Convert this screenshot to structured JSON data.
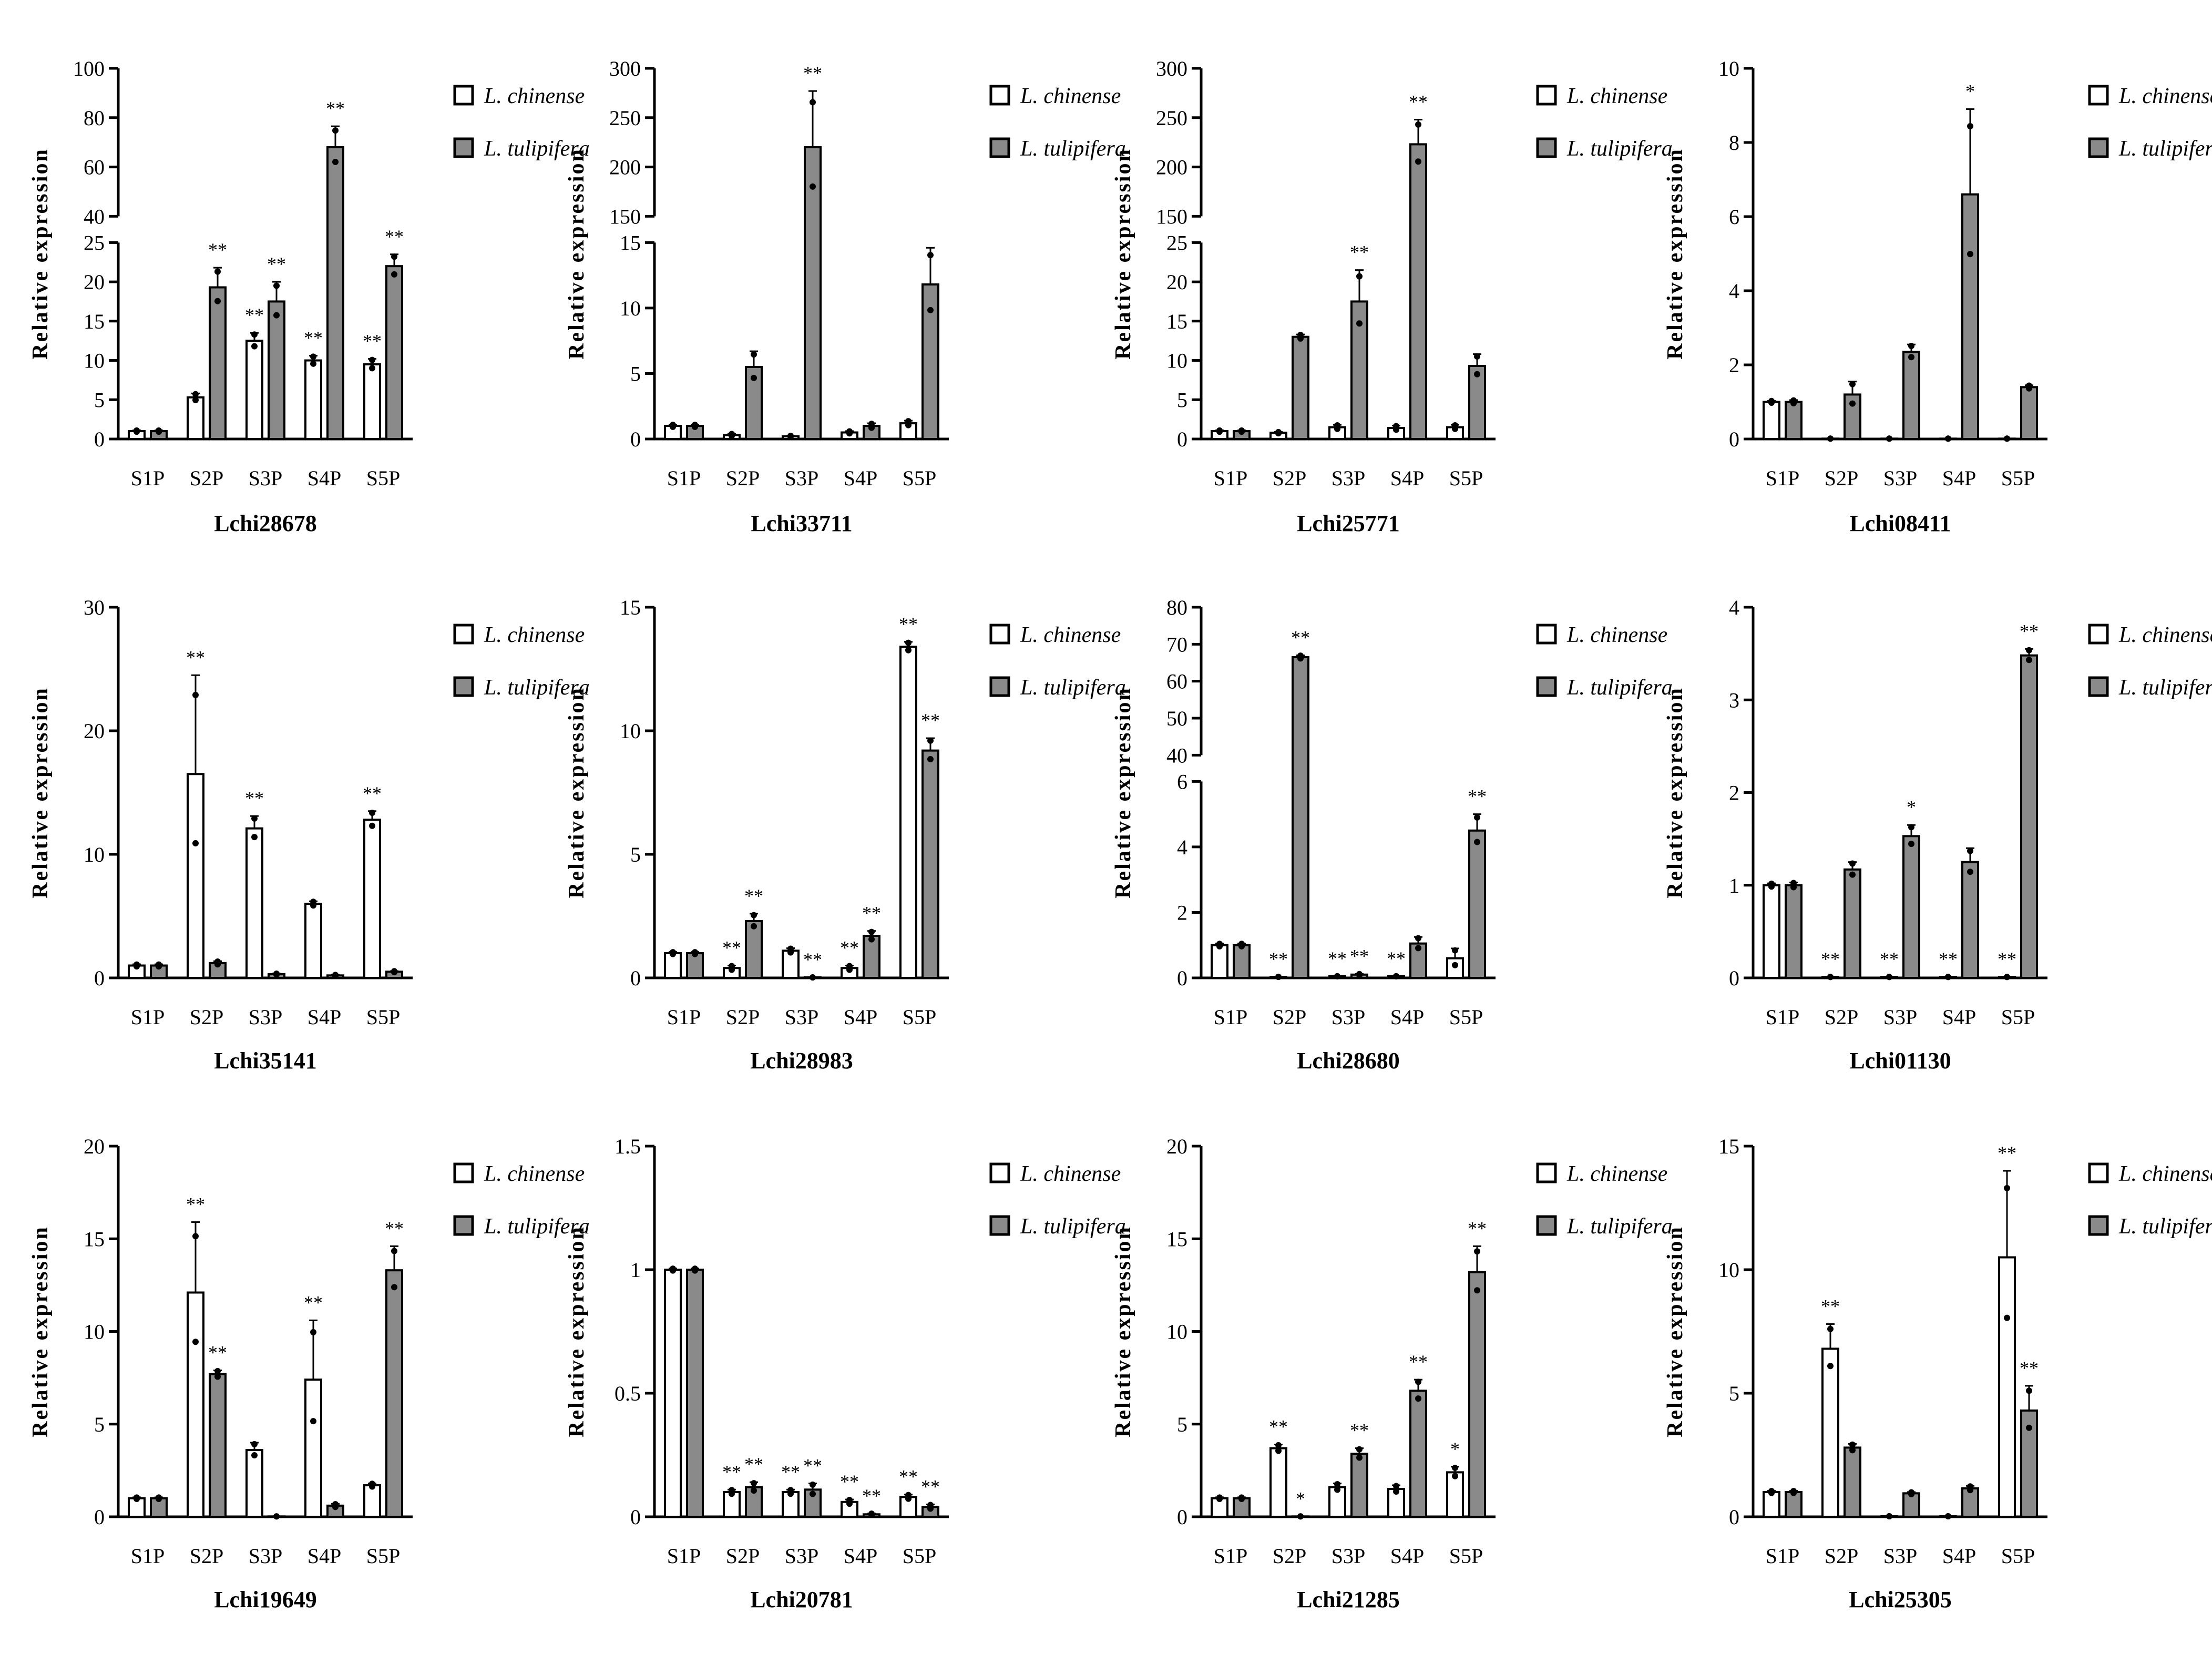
{
  "shared": {
    "ylabel": "Relative expression",
    "categories": [
      "S1P",
      "S2P",
      "S3P",
      "S4P",
      "S5P"
    ],
    "legend": [
      "L. chinense",
      "L. tulipifera"
    ],
    "colors": {
      "chinense": "#ffffff",
      "tulipifera": "#8a8a8a",
      "axis": "#000000"
    }
  },
  "chart_data": [
    {
      "type": "bar",
      "title": "Lchi28678",
      "ylabel": "Relative expression",
      "categories": [
        "S1P",
        "S2P",
        "S3P",
        "S4P",
        "S5P"
      ],
      "ylim": [
        0,
        100
      ],
      "axis_break": [
        25,
        40
      ],
      "yticks_lower": [
        0,
        5,
        10,
        15,
        20,
        25
      ],
      "yticks_upper": [
        40,
        60,
        80,
        100
      ],
      "series": [
        {
          "name": "L. chinense",
          "values": [
            1,
            5.3,
            12.5,
            10,
            9.5
          ],
          "errors": [
            0.1,
            0.5,
            1.0,
            0.6,
            0.7
          ],
          "sig": [
            "",
            "",
            "**",
            "**",
            "**"
          ]
        },
        {
          "name": "L. tulipifera",
          "values": [
            1,
            19.3,
            17.5,
            68,
            22
          ],
          "errors": [
            0.1,
            2.5,
            2.5,
            8.5,
            1.5
          ],
          "sig": [
            "",
            "**",
            "**",
            "**",
            "**"
          ]
        }
      ]
    },
    {
      "type": "bar",
      "title": "Lchi33711",
      "ylabel": "Relative expression",
      "categories": [
        "S1P",
        "S2P",
        "S3P",
        "S4P",
        "S5P"
      ],
      "ylim": [
        0,
        300
      ],
      "axis_break": [
        15,
        150
      ],
      "yticks_lower": [
        0,
        5,
        10,
        15
      ],
      "yticks_upper": [
        150,
        200,
        250,
        300
      ],
      "series": [
        {
          "name": "L. chinense",
          "values": [
            1,
            0.3,
            0.2,
            0.5,
            1.2
          ],
          "errors": [
            0.1,
            0.1,
            0.05,
            0.1,
            0.2
          ],
          "sig": [
            "",
            "",
            "",
            "",
            ""
          ]
        },
        {
          "name": "L. tulipifera",
          "values": [
            1,
            5.5,
            220,
            1,
            11.8
          ],
          "errors": [
            0.1,
            1.2,
            57,
            0.2,
            2.8
          ],
          "sig": [
            "",
            "",
            "**",
            "",
            ""
          ]
        }
      ]
    },
    {
      "type": "bar",
      "title": "Lchi25771",
      "ylabel": "Relative expression",
      "categories": [
        "S1P",
        "S2P",
        "S3P",
        "S4P",
        "S5P"
      ],
      "ylim": [
        0,
        300
      ],
      "axis_break": [
        25,
        150
      ],
      "yticks_lower": [
        0,
        5,
        10,
        15,
        20,
        25
      ],
      "yticks_upper": [
        150,
        200,
        250,
        300
      ],
      "series": [
        {
          "name": "L. chinense",
          "values": [
            1,
            0.8,
            1.5,
            1.4,
            1.5
          ],
          "errors": [
            0.1,
            0.1,
            0.3,
            0.3,
            0.3
          ],
          "sig": [
            "",
            "",
            "",
            "",
            ""
          ]
        },
        {
          "name": "L. tulipifera",
          "values": [
            1,
            13,
            17.5,
            223,
            9.3
          ],
          "errors": [
            0.1,
            0.3,
            4,
            25,
            1.5
          ],
          "sig": [
            "",
            "",
            "**",
            "**",
            ""
          ]
        }
      ]
    },
    {
      "type": "bar",
      "title": "Lchi08411",
      "ylabel": "Relative expression",
      "categories": [
        "S1P",
        "S2P",
        "S3P",
        "S4P",
        "S5P"
      ],
      "ylim": [
        0,
        10
      ],
      "yticks": [
        0,
        2,
        4,
        6,
        8,
        10
      ],
      "series": [
        {
          "name": "L. chinense",
          "values": [
            1,
            0.01,
            0.01,
            0.01,
            0.01
          ],
          "errors": [
            0.03,
            0,
            0,
            0,
            0
          ],
          "sig": [
            "",
            "",
            "",
            "",
            ""
          ]
        },
        {
          "name": "L. tulipifera",
          "values": [
            1,
            1.2,
            2.35,
            6.6,
            1.4
          ],
          "errors": [
            0.05,
            0.35,
            0.2,
            2.3,
            0.05
          ],
          "sig": [
            "",
            "",
            "",
            "*",
            ""
          ]
        }
      ]
    },
    {
      "type": "bar",
      "title": "Lchi35141",
      "ylabel": "Relative expression",
      "categories": [
        "S1P",
        "S2P",
        "S3P",
        "S4P",
        "S5P"
      ],
      "ylim": [
        0,
        30
      ],
      "yticks": [
        0,
        10,
        20,
        30
      ],
      "series": [
        {
          "name": "L. chinense",
          "values": [
            1,
            16.5,
            12.1,
            6,
            12.8
          ],
          "errors": [
            0.1,
            8,
            1,
            0.2,
            0.7
          ],
          "sig": [
            "",
            "**",
            "**",
            "",
            "**"
          ]
        },
        {
          "name": "L. tulipifera",
          "values": [
            1,
            1.2,
            0.3,
            0.2,
            0.5
          ],
          "errors": [
            0.1,
            0.15,
            0.05,
            0.05,
            0.05
          ],
          "sig": [
            "",
            "",
            "",
            "",
            ""
          ]
        }
      ]
    },
    {
      "type": "bar",
      "title": "Lchi28983",
      "ylabel": "Relative expression",
      "categories": [
        "S1P",
        "S2P",
        "S3P",
        "S4P",
        "S5P"
      ],
      "ylim": [
        0,
        15
      ],
      "yticks": [
        0,
        5,
        10,
        15
      ],
      "series": [
        {
          "name": "L. chinense",
          "values": [
            1,
            0.4,
            1.1,
            0.4,
            13.4
          ],
          "errors": [
            0.05,
            0.1,
            0.1,
            0.1,
            0.2
          ],
          "sig": [
            "",
            "**",
            "",
            "**",
            "**"
          ]
        },
        {
          "name": "L. tulipifera",
          "values": [
            1,
            2.3,
            0.02,
            1.7,
            9.2
          ],
          "errors": [
            0.05,
            0.3,
            0,
            0.2,
            0.5
          ],
          "sig": [
            "",
            "**",
            "**",
            "**",
            "**"
          ]
        }
      ]
    },
    {
      "type": "bar",
      "title": "Lchi28680",
      "ylabel": "Relative expression",
      "categories": [
        "S1P",
        "S2P",
        "S3P",
        "S4P",
        "S5P"
      ],
      "ylim": [
        0,
        80
      ],
      "axis_break": [
        6,
        40
      ],
      "yticks_lower": [
        0,
        2,
        4,
        6
      ],
      "yticks_upper": [
        40,
        50,
        60,
        70,
        80
      ],
      "series": [
        {
          "name": "L. chinense",
          "values": [
            1,
            0.03,
            0.05,
            0.05,
            0.6
          ],
          "errors": [
            0.05,
            0,
            0,
            0,
            0.3
          ],
          "sig": [
            "",
            "**",
            "**",
            "**",
            ""
          ]
        },
        {
          "name": "L. tulipifera",
          "values": [
            1,
            66.5,
            0.1,
            1.05,
            4.5
          ],
          "errors": [
            0.05,
            0.5,
            0.02,
            0.2,
            0.5
          ],
          "sig": [
            "",
            "**",
            "**",
            "",
            "**"
          ]
        }
      ]
    },
    {
      "type": "bar",
      "title": "Lchi01130",
      "ylabel": "Relative expression",
      "categories": [
        "S1P",
        "S2P",
        "S3P",
        "S4P",
        "S5P"
      ],
      "ylim": [
        0,
        4
      ],
      "yticks": [
        0,
        1,
        2,
        3,
        4
      ],
      "series": [
        {
          "name": "L. chinense",
          "values": [
            1,
            0.01,
            0.01,
            0.01,
            0.01
          ],
          "errors": [
            0.02,
            0,
            0,
            0,
            0
          ],
          "sig": [
            "",
            "**",
            "**",
            "**",
            "**"
          ]
        },
        {
          "name": "L. tulipifera",
          "values": [
            1,
            1.17,
            1.53,
            1.25,
            3.48
          ],
          "errors": [
            0.03,
            0.08,
            0.12,
            0.15,
            0.07
          ],
          "sig": [
            "",
            "",
            "*",
            "",
            "**"
          ]
        }
      ]
    },
    {
      "type": "bar",
      "title": "Lchi19649",
      "ylabel": "Relative expression",
      "categories": [
        "S1P",
        "S2P",
        "S3P",
        "S4P",
        "S5P"
      ],
      "ylim": [
        0,
        20
      ],
      "yticks": [
        0,
        5,
        10,
        15,
        20
      ],
      "series": [
        {
          "name": "L. chinense",
          "values": [
            1,
            12.1,
            3.6,
            7.4,
            1.7
          ],
          "errors": [
            0.05,
            3.8,
            0.4,
            3.2,
            0.1
          ],
          "sig": [
            "",
            "**",
            "",
            "**",
            ""
          ]
        },
        {
          "name": "L. tulipifera",
          "values": [
            1,
            7.7,
            0.02,
            0.6,
            13.3
          ],
          "errors": [
            0.05,
            0.2,
            0,
            0.1,
            1.3
          ],
          "sig": [
            "",
            "**",
            "",
            "",
            "**"
          ]
        }
      ]
    },
    {
      "type": "bar",
      "title": "Lchi20781",
      "ylabel": "Relative expression",
      "categories": [
        "S1P",
        "S2P",
        "S3P",
        "S4P",
        "S5P"
      ],
      "ylim": [
        0,
        1.5
      ],
      "yticks": [
        0.0,
        0.5,
        1.0,
        1.5
      ],
      "series": [
        {
          "name": "L. chinense",
          "values": [
            1,
            0.1,
            0.1,
            0.06,
            0.08
          ],
          "errors": [
            0.005,
            0.01,
            0.01,
            0.01,
            0.01
          ],
          "sig": [
            "",
            "**",
            "**",
            "**",
            "**"
          ]
        },
        {
          "name": "L. tulipifera",
          "values": [
            1,
            0.12,
            0.11,
            0.01,
            0.04
          ],
          "errors": [
            0.005,
            0.02,
            0.025,
            0.003,
            0.01
          ],
          "sig": [
            "",
            "**",
            "**",
            "**",
            "**"
          ]
        }
      ]
    },
    {
      "type": "bar",
      "title": "Lchi21285",
      "ylabel": "Relative expression",
      "categories": [
        "S1P",
        "S2P",
        "S3P",
        "S4P",
        "S5P"
      ],
      "ylim": [
        0,
        20
      ],
      "yticks": [
        0,
        5,
        10,
        15,
        20
      ],
      "series": [
        {
          "name": "L. chinense",
          "values": [
            1,
            3.7,
            1.6,
            1.5,
            2.4
          ],
          "errors": [
            0.05,
            0.2,
            0.2,
            0.2,
            0.3
          ],
          "sig": [
            "",
            "**",
            "",
            "",
            "*"
          ]
        },
        {
          "name": "L. tulipifera",
          "values": [
            1,
            0.02,
            3.4,
            6.8,
            13.2
          ],
          "errors": [
            0.05,
            0,
            0.3,
            0.6,
            1.4
          ],
          "sig": [
            "",
            "*",
            "**",
            "**",
            "**"
          ]
        }
      ]
    },
    {
      "type": "bar",
      "title": "Lchi25305",
      "ylabel": "Relative expression",
      "categories": [
        "S1P",
        "S2P",
        "S3P",
        "S4P",
        "S5P"
      ],
      "ylim": [
        0,
        15
      ],
      "yticks": [
        0,
        5,
        10,
        15
      ],
      "series": [
        {
          "name": "L. chinense",
          "values": [
            1,
            6.8,
            0.02,
            0.02,
            10.5
          ],
          "errors": [
            0.05,
            1.0,
            0,
            0,
            3.5
          ],
          "sig": [
            "",
            "**",
            "",
            "",
            "**"
          ]
        },
        {
          "name": "L. tulipifera",
          "values": [
            1,
            2.8,
            0.95,
            1.15,
            4.3
          ],
          "errors": [
            0.05,
            0.15,
            0.05,
            0.1,
            1.0
          ],
          "sig": [
            "",
            "",
            "",
            "",
            "**"
          ]
        }
      ]
    }
  ]
}
